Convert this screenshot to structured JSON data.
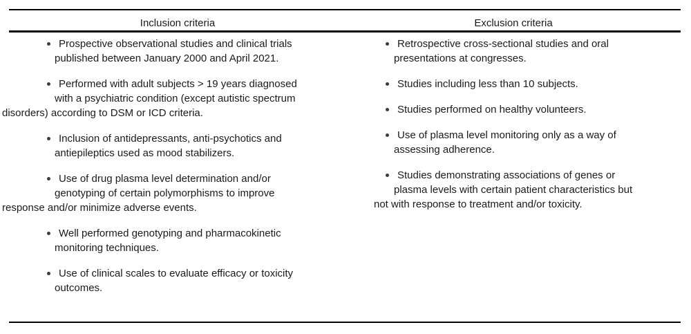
{
  "colors": {
    "text": "#1a1a1a",
    "rule": "#000000",
    "bullet": "#3c3c3c",
    "background": "#ffffff"
  },
  "table": {
    "columns": [
      {
        "header": "Inclusion criteria",
        "items": [
          {
            "lines": [
              "Prospective observational studies and clinical trials",
              "published between January 2000 and April 2021."
            ]
          },
          {
            "lines": [
              "Performed with adult subjects > 19 years diagnosed",
              "with a psychiatric condition (except autistic spectrum",
              "disorders) according to DSM or ICD criteria."
            ]
          },
          {
            "lines": [
              "Inclusion of antidepressants, anti-psychotics and",
              "antiepileptics used as mood stabilizers."
            ]
          },
          {
            "lines": [
              "Use of drug plasma level determination and/or",
              "genotyping of certain polymorphisms to improve",
              "response and/or minimize adverse events."
            ]
          },
          {
            "lines": [
              "Well performed genotyping and pharmacokinetic",
              "monitoring techniques."
            ]
          },
          {
            "lines": [
              "Use of clinical scales to evaluate efficacy or toxicity",
              "outcomes."
            ]
          }
        ]
      },
      {
        "header": "Exclusion criteria",
        "items": [
          {
            "lines": [
              "Retrospective cross-sectional studies and oral",
              "presentations at congresses."
            ]
          },
          {
            "lines": [
              "Studies including less than 10 subjects."
            ]
          },
          {
            "lines": [
              "Studies performed on healthy volunteers."
            ]
          },
          {
            "lines": [
              "Use of plasma level monitoring only as a way of",
              "assessing adherence."
            ]
          },
          {
            "lines": [
              "Studies demonstrating associations of genes or",
              "plasma levels with certain patient characteristics but",
              "not with response to treatment and/or toxicity."
            ]
          }
        ]
      }
    ]
  }
}
